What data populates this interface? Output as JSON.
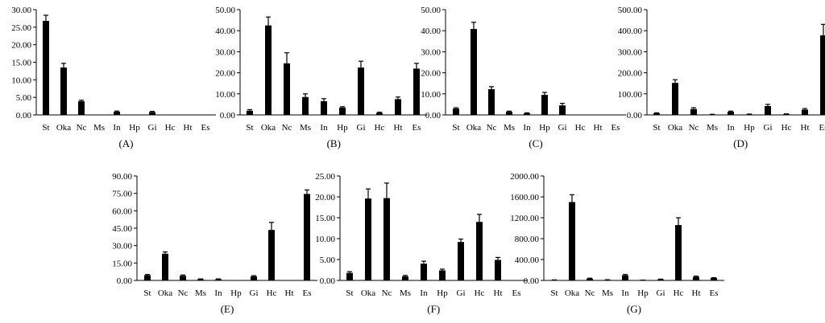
{
  "chart_data": [
    {
      "type": "bar",
      "caption": "(A)",
      "categories": [
        "St",
        "Oka",
        "Nc",
        "Ms",
        "In",
        "Hp",
        "Gi",
        "Hc",
        "Ht",
        "Es"
      ],
      "values": [
        26.8,
        13.5,
        3.9,
        0,
        0.9,
        0,
        0.8,
        0,
        0,
        0
      ],
      "errors": [
        1.6,
        1.2,
        0.3,
        0,
        0.2,
        0,
        0.2,
        0,
        0,
        0
      ],
      "ylim": [
        0,
        30
      ],
      "yticks": [
        "0.00",
        "5.00",
        "10.00",
        "15.00",
        "20.00",
        "25.00",
        "30.00"
      ]
    },
    {
      "type": "bar",
      "caption": "(B)",
      "categories": [
        "St",
        "Oka",
        "Nc",
        "Ms",
        "In",
        "Hp",
        "Gi",
        "Hc",
        "Ht",
        "Es"
      ],
      "values": [
        2.0,
        42.5,
        24.5,
        8.5,
        6.5,
        3.5,
        22.5,
        1.0,
        7.5,
        22.0
      ],
      "errors": [
        0.5,
        4.0,
        5.0,
        1.5,
        1.2,
        0.4,
        3.0,
        0.3,
        1.0,
        2.5
      ],
      "ylim": [
        0,
        50
      ],
      "yticks": [
        "0.00",
        "10.00",
        "20.00",
        "30.00",
        "40.00",
        "50.00"
      ]
    },
    {
      "type": "bar",
      "caption": "(C)",
      "categories": [
        "St",
        "Oka",
        "Nc",
        "Ms",
        "In",
        "Hp",
        "Gi",
        "Hc",
        "Ht",
        "Es"
      ],
      "values": [
        3.0,
        40.8,
        12.2,
        1.5,
        0.8,
        9.5,
        4.5,
        0,
        0,
        0
      ],
      "errors": [
        0.4,
        3.2,
        1.2,
        0.3,
        0.2,
        1.2,
        1.0,
        0,
        0,
        0
      ],
      "ylim": [
        0,
        50
      ],
      "yticks": [
        "0.00",
        "10.00",
        "20.00",
        "30.00",
        "40.00",
        "50.00"
      ]
    },
    {
      "type": "bar",
      "caption": "(D)",
      "categories": [
        "St",
        "Oka",
        "Nc",
        "Ms",
        "In",
        "Hp",
        "Gi",
        "Hc",
        "Ht",
        "Es"
      ],
      "values": [
        8,
        152,
        28,
        2,
        15,
        3,
        42,
        4,
        25,
        378
      ],
      "errors": [
        2,
        15,
        6,
        1,
        3,
        1,
        8,
        1,
        5,
        52
      ],
      "ylim": [
        0,
        500
      ],
      "yticks": [
        "0.00",
        "100.00",
        "200.00",
        "300.00",
        "400.00",
        "500.00"
      ]
    },
    {
      "type": "bar",
      "caption": "(E)",
      "categories": [
        "St",
        "Oka",
        "Nc",
        "Ms",
        "In",
        "Hp",
        "Gi",
        "Hc",
        "Ht",
        "Es"
      ],
      "values": [
        4.5,
        23.0,
        4.0,
        1.0,
        1.0,
        0,
        3.5,
        43.5,
        0,
        74.5
      ],
      "errors": [
        0.6,
        1.5,
        0.7,
        0.3,
        0.3,
        0,
        0.6,
        6.5,
        0,
        3.5
      ],
      "ylim": [
        0,
        90
      ],
      "yticks": [
        "0.00",
        "15.00",
        "30.00",
        "45.00",
        "60.00",
        "75.00",
        "90.00"
      ]
    },
    {
      "type": "bar",
      "caption": "(F)",
      "categories": [
        "St",
        "Oka",
        "Nc",
        "Ms",
        "In",
        "Hp",
        "Gi",
        "Hc",
        "Ht",
        "Es"
      ],
      "values": [
        1.8,
        19.6,
        19.7,
        1.0,
        4.0,
        2.4,
        9.2,
        14.0,
        4.9,
        0
      ],
      "errors": [
        0.3,
        2.3,
        3.6,
        0.2,
        0.6,
        0.3,
        0.7,
        1.8,
        0.6,
        0
      ],
      "ylim": [
        0,
        25
      ],
      "yticks": [
        "0.00",
        "5.00",
        "10.00",
        "15.00",
        "20.00",
        "25.00"
      ]
    },
    {
      "type": "bar",
      "caption": "(G)",
      "categories": [
        "St",
        "Oka",
        "Nc",
        "Ms",
        "In",
        "Hp",
        "Gi",
        "Hc",
        "Ht",
        "Es"
      ],
      "values": [
        8,
        1500,
        35,
        10,
        100,
        5,
        20,
        1060,
        70,
        45
      ],
      "errors": [
        2,
        140,
        8,
        3,
        15,
        2,
        5,
        140,
        12,
        8
      ],
      "ylim": [
        0,
        2000
      ],
      "yticks": [
        "0.00",
        "400.00",
        "800.00",
        "1200.00",
        "1600.00",
        "2000.00"
      ]
    }
  ]
}
